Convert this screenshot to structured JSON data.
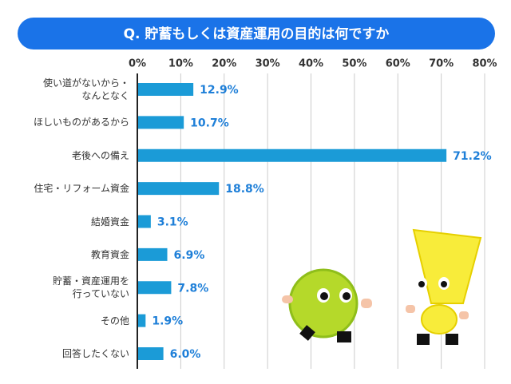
{
  "chart_data": {
    "type": "bar",
    "orientation": "horizontal",
    "title": "Q. 貯蓄もしくは資産運用の目的は何ですか",
    "categories": [
      "使い道がないから・\nなんとなく",
      "ほしいものがあるから",
      "老後への備え",
      "住宅・リフォーム資金",
      "結婚資金",
      "教育資金",
      "貯蓄・資産運用を\n行っていない",
      "その他",
      "回答したくない"
    ],
    "values": [
      12.9,
      10.7,
      71.2,
      18.8,
      3.1,
      6.9,
      7.8,
      1.9,
      6.0
    ],
    "value_labels": [
      "12.9%",
      "10.7%",
      "71.2%",
      "18.8%",
      "3.1%",
      "6.9%",
      "7.8%",
      "1.9%",
      "6.0%"
    ],
    "color": "#1b9bd7",
    "xlim": [
      0,
      80
    ],
    "xticks": [
      {
        "value": 0,
        "label": "0%"
      },
      {
        "value": 10,
        "label": "10%"
      },
      {
        "value": 20,
        "label": "20%"
      },
      {
        "value": 30,
        "label": "30%"
      },
      {
        "value": 40,
        "label": "40%"
      },
      {
        "value": 50,
        "label": "50%"
      },
      {
        "value": 60,
        "label": "60%"
      },
      {
        "value": 70,
        "label": "70%"
      },
      {
        "value": 80,
        "label": "80%"
      }
    ],
    "grid": true
  }
}
